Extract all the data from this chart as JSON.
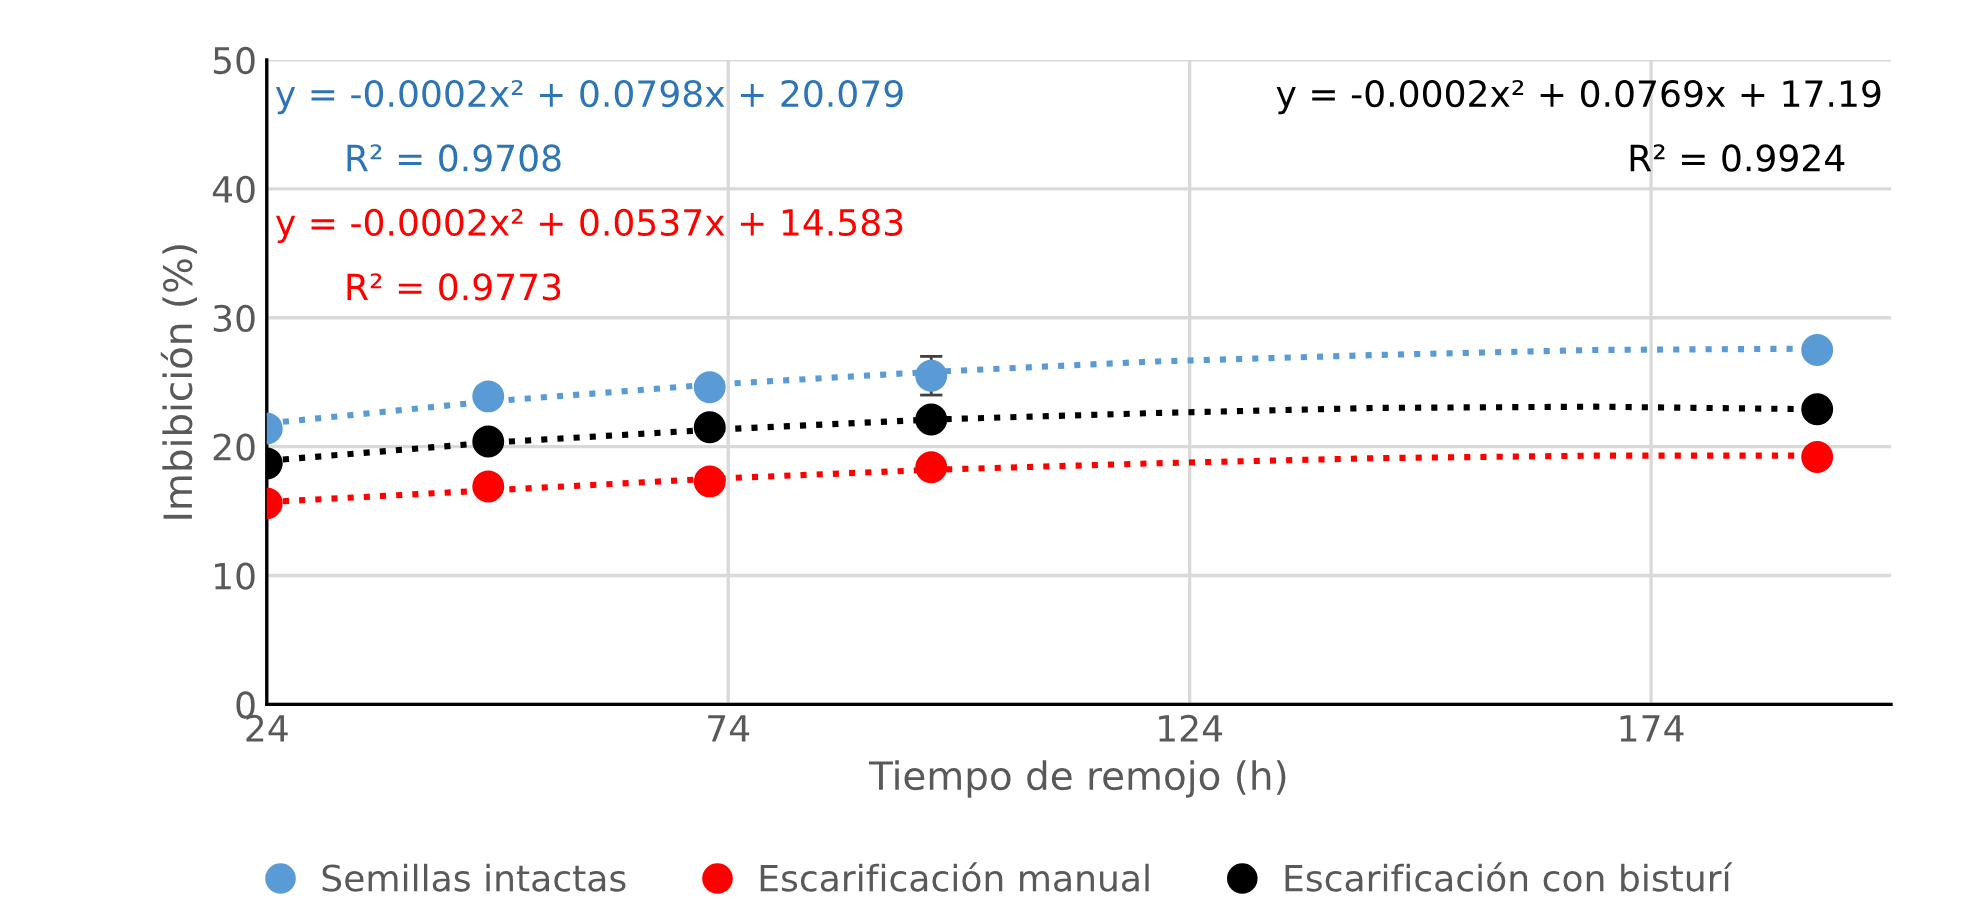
{
  "chart_data": {
    "type": "scatter",
    "xlabel": "Tiempo de remojo (h)",
    "ylabel": "Imbibición (%)",
    "xlim": [
      24,
      200
    ],
    "xticks": [
      24,
      74,
      124,
      174
    ],
    "ylim": [
      0,
      50
    ],
    "yticks": [
      0,
      10,
      20,
      30,
      40,
      50
    ],
    "grid": true,
    "legend": "bottom",
    "marker": "circle",
    "series": [
      {
        "name": "Semillas intactas",
        "color": "#5b9bd5",
        "x": [
          24,
          48,
          72,
          96,
          192
        ],
        "values": [
          21.4,
          23.9,
          24.6,
          25.5,
          27.5
        ],
        "errors": [
          null,
          null,
          null,
          1.5,
          null
        ]
      },
      {
        "name": "Escarificación manual",
        "color": "#ff0000",
        "x": [
          24,
          48,
          72,
          96,
          192
        ],
        "values": [
          15.6,
          16.9,
          17.3,
          18.4,
          19.2
        ]
      },
      {
        "name": "Escarificación con bisturí",
        "color": "#000000",
        "x": [
          24,
          48,
          72,
          96,
          192
        ],
        "values": [
          18.7,
          20.4,
          21.5,
          22.1,
          22.9
        ]
      },
      {
        "type": "line",
        "line_style": "dotted",
        "marker": "none",
        "color": "#5b9bd5",
        "x": [
          24,
          48,
          72,
          96,
          120,
          144,
          168,
          192
        ],
        "values": [
          21.8,
          23.5,
          24.8,
          25.8,
          26.6,
          27.1,
          27.5,
          27.6
        ]
      },
      {
        "type": "line",
        "line_style": "dotted",
        "marker": "none",
        "color": "#ff0000",
        "x": [
          24,
          48,
          72,
          96,
          120,
          144,
          168,
          192
        ],
        "values": [
          15.7,
          16.6,
          17.5,
          18.2,
          18.7,
          19.1,
          19.3,
          19.3
        ]
      },
      {
        "type": "line",
        "line_style": "dotted",
        "marker": "none",
        "color": "#000000",
        "x": [
          24,
          48,
          72,
          96,
          120,
          144,
          168,
          192
        ],
        "values": [
          18.9,
          20.3,
          21.3,
          22.1,
          22.6,
          23.0,
          23.1,
          22.9
        ]
      }
    ],
    "annotations": [
      "y = -0.0002x² + 0.0798x + 20.079",
      "R² = 0.9708",
      "y = -0.0002x² + 0.0537x + 14.583",
      "R² = 0.9773",
      "y = -0.0002x² + 0.0769x + 17.19",
      "R² = 0.9924"
    ]
  }
}
